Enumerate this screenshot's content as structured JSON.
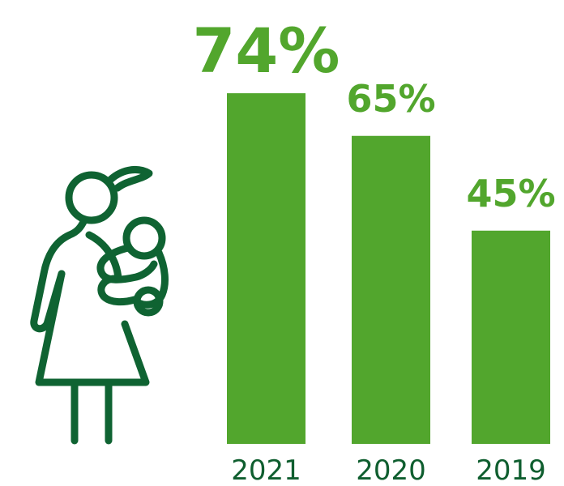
{
  "colors": {
    "bar": "#52a62d",
    "value_label": "#52a62d",
    "tick_label": "#0f5e2f",
    "icon": "#0f6332"
  },
  "icon": {
    "name": "mother-holding-baby-icon"
  },
  "chart_data": {
    "type": "bar",
    "categories": [
      "2021",
      "2020",
      "2019"
    ],
    "values": [
      74,
      65,
      45
    ],
    "value_labels": [
      "74%",
      "65%",
      "45%"
    ],
    "title": "",
    "xlabel": "",
    "ylabel": "",
    "ylim": [
      0,
      100
    ],
    "grid": false,
    "legend": "none"
  }
}
